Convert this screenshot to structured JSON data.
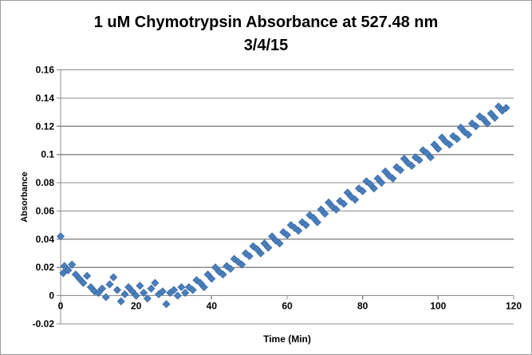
{
  "frame": {
    "background": "#FFFFFF",
    "border_color": "#9C9C9C"
  },
  "chart_data": {
    "type": "scatter",
    "title": "1 uM Chymotrypsin Absorbance at 527.48 nm",
    "subtitle": "3/4/15",
    "xlabel": "Time (Min)",
    "ylabel": "Absorbance",
    "xlim": [
      0,
      120
    ],
    "ylim": [
      -0.02,
      0.16
    ],
    "x_ticks": [
      0,
      20,
      40,
      60,
      80,
      100,
      120
    ],
    "x_tick_labels": [
      "0",
      "20",
      "40",
      "60",
      "80",
      "100",
      "120"
    ],
    "y_ticks": [
      -0.02,
      0,
      0.02,
      0.04,
      0.06,
      0.08,
      0.1,
      0.12,
      0.14,
      0.16
    ],
    "y_tick_labels": [
      "-0.02",
      "0",
      "0.02",
      "0.04",
      "0.06",
      "0.08",
      "0.1",
      "0.12",
      "0.14",
      "0.16"
    ],
    "grid": "horizontal",
    "legend": "none",
    "axis_color": "#8C8C8C",
    "gridline_color": "#8C8C8C",
    "marker": {
      "shape": "diamond",
      "fill": "#4A7EBB",
      "stroke": "#3A6BA6",
      "size": 9
    },
    "points": [
      [
        0,
        0.042
      ],
      [
        0.7,
        0.016
      ],
      [
        1,
        0.021
      ],
      [
        2,
        0.018
      ],
      [
        3,
        0.022
      ],
      [
        4,
        0.015
      ],
      [
        5,
        0.012
      ],
      [
        6,
        0.009
      ],
      [
        7,
        0.014
      ],
      [
        8,
        0.006
      ],
      [
        9,
        0.003
      ],
      [
        10,
        0.002
      ],
      [
        11,
        0.005
      ],
      [
        12,
        -0.001
      ],
      [
        13,
        0.008
      ],
      [
        14,
        0.013
      ],
      [
        15,
        0.004
      ],
      [
        16,
        -0.004
      ],
      [
        17,
        0.001
      ],
      [
        18,
        0.006
      ],
      [
        19,
        0.003
      ],
      [
        20,
        0.0
      ],
      [
        21,
        0.007
      ],
      [
        22,
        0.002
      ],
      [
        23,
        -0.002
      ],
      [
        24,
        0.005
      ],
      [
        25,
        0.009
      ],
      [
        26,
        0.001
      ],
      [
        27,
        0.003
      ],
      [
        28,
        -0.006
      ],
      [
        29,
        0.002
      ],
      [
        30,
        0.004
      ],
      [
        31,
        0.0
      ],
      [
        32,
        0.006
      ],
      [
        33,
        0.002
      ],
      [
        34,
        0.006
      ],
      [
        35,
        0.004
      ],
      [
        36,
        0.011
      ],
      [
        37,
        0.009
      ],
      [
        38,
        0.006
      ],
      [
        39,
        0.015
      ],
      [
        40,
        0.012
      ],
      [
        41,
        0.02
      ],
      [
        42,
        0.017
      ],
      [
        43,
        0.015
      ],
      [
        44,
        0.021
      ],
      [
        45,
        0.019
      ],
      [
        46,
        0.026
      ],
      [
        47,
        0.024
      ],
      [
        48,
        0.022
      ],
      [
        49,
        0.03
      ],
      [
        50,
        0.028
      ],
      [
        51,
        0.035
      ],
      [
        52,
        0.033
      ],
      [
        53,
        0.03
      ],
      [
        54,
        0.037
      ],
      [
        55,
        0.034
      ],
      [
        56,
        0.042
      ],
      [
        57,
        0.039
      ],
      [
        58,
        0.037
      ],
      [
        59,
        0.045
      ],
      [
        60,
        0.043
      ],
      [
        61,
        0.05
      ],
      [
        62,
        0.048
      ],
      [
        63,
        0.046
      ],
      [
        64,
        0.052
      ],
      [
        65,
        0.05
      ],
      [
        66,
        0.057
      ],
      [
        67,
        0.055
      ],
      [
        68,
        0.052
      ],
      [
        69,
        0.061
      ],
      [
        70,
        0.058
      ],
      [
        71,
        0.066
      ],
      [
        72,
        0.063
      ],
      [
        73,
        0.061
      ],
      [
        74,
        0.067
      ],
      [
        75,
        0.065
      ],
      [
        76,
        0.073
      ],
      [
        77,
        0.07
      ],
      [
        78,
        0.068
      ],
      [
        79,
        0.076
      ],
      [
        80,
        0.074
      ],
      [
        81,
        0.081
      ],
      [
        82,
        0.079
      ],
      [
        83,
        0.076
      ],
      [
        84,
        0.083
      ],
      [
        85,
        0.08
      ],
      [
        86,
        0.088
      ],
      [
        87,
        0.085
      ],
      [
        88,
        0.083
      ],
      [
        89,
        0.091
      ],
      [
        90,
        0.089
      ],
      [
        91,
        0.097
      ],
      [
        92,
        0.094
      ],
      [
        93,
        0.092
      ],
      [
        94,
        0.098
      ],
      [
        95,
        0.096
      ],
      [
        96,
        0.103
      ],
      [
        97,
        0.101
      ],
      [
        98,
        0.098
      ],
      [
        99,
        0.107
      ],
      [
        100,
        0.104
      ],
      [
        101,
        0.112
      ],
      [
        102,
        0.109
      ],
      [
        103,
        0.107
      ],
      [
        104,
        0.113
      ],
      [
        105,
        0.111
      ],
      [
        106,
        0.119
      ],
      [
        107,
        0.116
      ],
      [
        108,
        0.114
      ],
      [
        109,
        0.122
      ],
      [
        110,
        0.12
      ],
      [
        111,
        0.127
      ],
      [
        112,
        0.125
      ],
      [
        113,
        0.122
      ],
      [
        114,
        0.129
      ],
      [
        115,
        0.126
      ],
      [
        116,
        0.134
      ],
      [
        117,
        0.131
      ],
      [
        118,
        0.133
      ]
    ]
  }
}
